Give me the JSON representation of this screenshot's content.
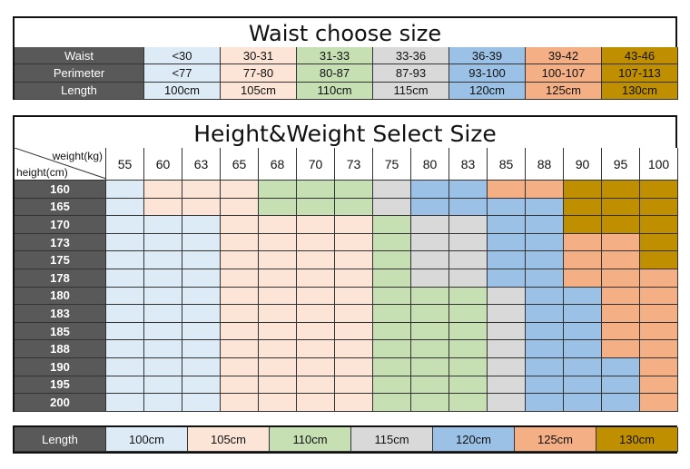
{
  "colors": [
    "#ddebf7",
    "#fce4d6",
    "#c6e0b4",
    "#d9d9d9",
    "#9bc2e6",
    "#f4b084",
    "#bf8f00"
  ],
  "label_color": "#595959",
  "waist_table": {
    "title": "Waist choose size",
    "rows": [
      {
        "label": "Waist",
        "values": [
          "<30",
          "30-31",
          "31-33",
          "33-36",
          "36-39",
          "39-42",
          "43-46"
        ]
      },
      {
        "label": "Perimeter",
        "values": [
          "<77",
          "77-80",
          "80-87",
          "87-93",
          "93-100",
          "100-107",
          "107-113"
        ]
      },
      {
        "label": "Length",
        "values": [
          "100cm",
          "105cm",
          "110cm",
          "115cm",
          "120cm",
          "125cm",
          "130cm"
        ]
      }
    ]
  },
  "size_table": {
    "title": "Height&Weight Select Size",
    "corner_top": "weight(kg)",
    "corner_bottom": "height(cm)",
    "weights": [
      "55",
      "60",
      "63",
      "65",
      "68",
      "70",
      "73",
      "75",
      "80",
      "83",
      "85",
      "88",
      "90",
      "95",
      "100"
    ],
    "heights": [
      "160",
      "165",
      "170",
      "173",
      "175",
      "178",
      "180",
      "183",
      "185",
      "188",
      "190",
      "195",
      "200"
    ],
    "grid": [
      [
        0,
        1,
        1,
        1,
        2,
        2,
        2,
        3,
        4,
        4,
        5,
        5,
        6,
        6,
        6
      ],
      [
        0,
        1,
        1,
        1,
        2,
        2,
        2,
        3,
        4,
        4,
        4,
        4,
        6,
        6,
        6
      ],
      [
        0,
        0,
        0,
        1,
        1,
        1,
        1,
        2,
        3,
        3,
        4,
        4,
        6,
        6,
        6
      ],
      [
        0,
        0,
        0,
        1,
        1,
        1,
        1,
        2,
        3,
        3,
        4,
        4,
        5,
        5,
        6
      ],
      [
        0,
        0,
        0,
        1,
        1,
        1,
        1,
        2,
        3,
        3,
        4,
        4,
        5,
        5,
        6
      ],
      [
        0,
        0,
        0,
        1,
        1,
        1,
        1,
        2,
        3,
        3,
        4,
        4,
        5,
        5,
        5
      ],
      [
        0,
        0,
        0,
        1,
        1,
        1,
        1,
        2,
        2,
        2,
        3,
        4,
        4,
        5,
        5
      ],
      [
        0,
        0,
        0,
        1,
        1,
        1,
        1,
        2,
        2,
        2,
        3,
        4,
        4,
        5,
        5
      ],
      [
        0,
        0,
        0,
        1,
        1,
        1,
        1,
        2,
        2,
        2,
        3,
        4,
        4,
        5,
        5
      ],
      [
        0,
        0,
        0,
        1,
        1,
        1,
        1,
        2,
        2,
        2,
        3,
        4,
        4,
        5,
        5
      ],
      [
        0,
        0,
        0,
        1,
        1,
        1,
        1,
        2,
        2,
        2,
        3,
        4,
        4,
        4,
        5
      ],
      [
        0,
        0,
        0,
        1,
        1,
        1,
        1,
        2,
        2,
        2,
        3,
        4,
        4,
        4,
        5
      ],
      [
        0,
        0,
        0,
        1,
        1,
        1,
        1,
        2,
        2,
        2,
        3,
        4,
        4,
        4,
        5
      ]
    ]
  },
  "length_legend": {
    "label": "Length",
    "values": [
      "100cm",
      "105cm",
      "110cm",
      "115cm",
      "120cm",
      "125cm",
      "130cm"
    ]
  }
}
